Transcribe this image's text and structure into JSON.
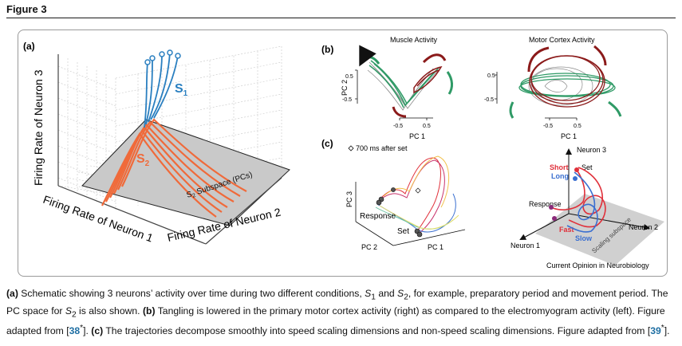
{
  "figure_title": "Figure 3",
  "panel_a": {
    "label": "(a)",
    "y_axis": "Firing Rate of Neuron 3",
    "x_axis_1": "Firing Rate of Neuron 1",
    "x_axis_2": "Firing Rate of Neuron 2",
    "s1": "S",
    "s1_sub": "1",
    "s2": "S",
    "s2_sub": "2",
    "subspace_s": "S",
    "subspace_sub": "2",
    "subspace_rest": " Subspace (PCs)"
  },
  "panel_b": {
    "label": "(b)",
    "left_title": "Muscle Activity",
    "right_title": "Motor Cortex Activity",
    "y_label": "PC 2",
    "x_label": "PC 1",
    "ticks": [
      "0.5",
      "-0.5",
      "-0.5",
      "0.5"
    ]
  },
  "panel_c": {
    "label": "(c)",
    "legend": "700 ms after set",
    "pc3": "PC 3",
    "pc2": "PC 2",
    "pc1": "PC 1",
    "response": "Response",
    "set": "Set",
    "neuron3": "Neuron 3",
    "neuron1": "Neuron 1",
    "neuron2": "Neuron 2",
    "short": "Short",
    "long": "Long",
    "set2": "Set",
    "response2": "Response",
    "fast": "Fast",
    "slow": "Slow",
    "scaling": "Scaling subspace",
    "credit": "Current Opinion in Neurobiology"
  },
  "caption": {
    "a_label": "(a)",
    "a_text_1": " Schematic showing 3 neurons’ activity over time during two different conditions, ",
    "s": "S",
    "one": "1",
    "and": " and ",
    "two": "2",
    "a_text_2": ", for example, preparatory period and movement period. The PC space for ",
    "a_text_3": " is also shown. ",
    "b_label": "(b)",
    "b_text": " Tangling is lowered in the primary motor cortex activity (right) as compared to the electromyogram activity (left). Figure adapted from [",
    "ref1": "38",
    "star": "*",
    "close": "]. ",
    "c_label": "(c)",
    "c_text": " The trajectories decompose smoothly into speed scaling dimensions and non-speed scaling dimensions. Figure adapted from [",
    "ref2": "39",
    "end": "]."
  },
  "colors": {
    "blue": "#2a7fc0",
    "orange": "#f06a3a",
    "green": "#2f9a66",
    "darkred": "#8b1a1a",
    "red": "#e0303a"
  }
}
